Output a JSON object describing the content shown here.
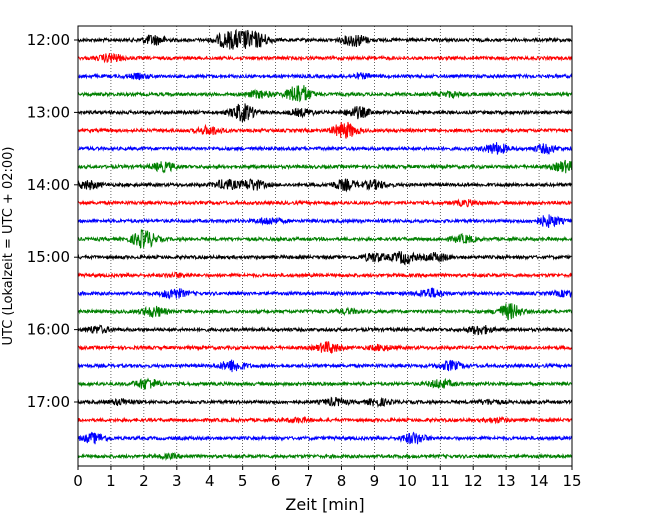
{
  "chart_data": {
    "type": "line",
    "title": "",
    "xlabel": "Zeit  [min]",
    "ylabel": "UTC (Lokalzeit = UTC + 02:00)",
    "xlim": [
      0,
      15
    ],
    "x_ticks": [
      "0",
      "1",
      "2",
      "3",
      "4",
      "5",
      "6",
      "7",
      "8",
      "9",
      "10",
      "11",
      "12",
      "13",
      "14",
      "15"
    ],
    "y_ticks": [
      {
        "label": "12:00",
        "trace": 0
      },
      {
        "label": "13:00",
        "trace": 4
      },
      {
        "label": "14:00",
        "trace": 8
      },
      {
        "label": "15:00",
        "trace": 12
      },
      {
        "label": "16:00",
        "trace": 16
      },
      {
        "label": "17:00",
        "trace": 20
      }
    ],
    "grid": "vertical-dotted",
    "colors": [
      "#000000",
      "#ff0000",
      "#0000ff",
      "#008000"
    ],
    "trace_count": 24,
    "trace_interval_min": 15,
    "events": [
      {
        "trace": 0,
        "at": [
          [
            2.3,
            1.4
          ],
          [
            4.5,
            2.0
          ],
          [
            5.0,
            2.4
          ],
          [
            5.5,
            1.8
          ],
          [
            8.4,
            1.8
          ]
        ]
      },
      {
        "trace": 1,
        "at": [
          [
            1.0,
            1.2
          ]
        ]
      },
      {
        "trace": 2,
        "at": [
          [
            1.8,
            0.6
          ],
          [
            8.6,
            0.6
          ]
        ]
      },
      {
        "trace": 3,
        "at": [
          [
            6.7,
            3.0
          ],
          [
            5.5,
            1.0
          ],
          [
            11.3,
            0.7
          ]
        ]
      },
      {
        "trace": 4,
        "at": [
          [
            5.0,
            2.6
          ],
          [
            8.5,
            1.6
          ],
          [
            6.8,
            1.0
          ]
        ]
      },
      {
        "trace": 5,
        "at": [
          [
            8.1,
            2.4
          ],
          [
            4.0,
            1.2
          ]
        ]
      },
      {
        "trace": 6,
        "at": [
          [
            12.7,
            1.6
          ],
          [
            14.2,
            1.2
          ]
        ]
      },
      {
        "trace": 7,
        "at": [
          [
            2.6,
            1.3
          ],
          [
            14.8,
            1.6
          ]
        ]
      },
      {
        "trace": 8,
        "at": [
          [
            0.3,
            1.2
          ],
          [
            4.5,
            1.4
          ],
          [
            5.3,
            1.6
          ],
          [
            8.1,
            1.5
          ],
          [
            9.0,
            1.2
          ]
        ]
      },
      {
        "trace": 9,
        "at": [
          [
            11.8,
            0.7
          ]
        ]
      },
      {
        "trace": 10,
        "at": [
          [
            5.8,
            1.0
          ],
          [
            14.3,
            1.7
          ]
        ]
      },
      {
        "trace": 11,
        "at": [
          [
            2.0,
            2.7
          ],
          [
            11.7,
            1.1
          ]
        ]
      },
      {
        "trace": 12,
        "at": [
          [
            9.9,
            1.8
          ],
          [
            9.0,
            1.2
          ],
          [
            10.9,
            1.2
          ]
        ]
      },
      {
        "trace": 13,
        "at": [
          [
            3.0,
            0.5
          ]
        ]
      },
      {
        "trace": 14,
        "at": [
          [
            2.9,
            1.5
          ],
          [
            10.7,
            1.4
          ],
          [
            14.8,
            0.8
          ]
        ]
      },
      {
        "trace": 15,
        "at": [
          [
            2.3,
            1.5
          ],
          [
            13.1,
            2.3
          ],
          [
            8.2,
            0.6
          ]
        ]
      },
      {
        "trace": 16,
        "at": [
          [
            0.6,
            1.0
          ],
          [
            12.2,
            1.3
          ]
        ]
      },
      {
        "trace": 17,
        "at": [
          [
            7.6,
            1.6
          ],
          [
            9.2,
            0.8
          ]
        ]
      },
      {
        "trace": 18,
        "at": [
          [
            4.7,
            1.7
          ],
          [
            11.3,
            1.3
          ]
        ]
      },
      {
        "trace": 19,
        "at": [
          [
            2.1,
            1.6
          ],
          [
            11.0,
            1.2
          ]
        ]
      },
      {
        "trace": 20,
        "at": [
          [
            1.3,
            0.8
          ],
          [
            7.8,
            1.0
          ],
          [
            9.1,
            1.0
          ],
          [
            12.5,
            0.6
          ]
        ]
      },
      {
        "trace": 21,
        "at": [
          [
            6.7,
            0.6
          ],
          [
            12.7,
            0.6
          ]
        ]
      },
      {
        "trace": 22,
        "at": [
          [
            0.5,
            1.4
          ],
          [
            10.2,
            1.6
          ]
        ]
      },
      {
        "trace": 23,
        "at": [
          [
            2.8,
            0.5
          ]
        ]
      }
    ]
  }
}
